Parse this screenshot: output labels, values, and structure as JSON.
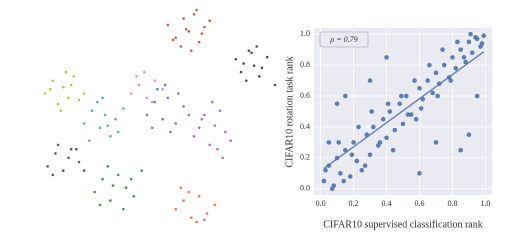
{
  "chart_data": [
    {
      "type": "scatter",
      "series": [
        {
          "color": "#b5462f",
          "x": [
            52,
            55,
            58,
            60,
            62,
            64,
            66,
            68,
            57,
            61,
            65,
            63,
            59,
            54
          ],
          "y": [
            92,
            86,
            95,
            89,
            97,
            84,
            91,
            94,
            82,
            80,
            88,
            99,
            90,
            85
          ]
        },
        {
          "color": "#333333",
          "x": [
            78,
            80,
            83,
            85,
            87,
            90,
            82,
            86,
            88,
            93,
            81,
            84
          ],
          "y": [
            76,
            70,
            80,
            73,
            68,
            77,
            66,
            82,
            72,
            64,
            74,
            79
          ]
        },
        {
          "color": "#b5b52a",
          "x": [
            5,
            8,
            10,
            12,
            14,
            16,
            18,
            11,
            7,
            15,
            20,
            13
          ],
          "y": [
            60,
            66,
            55,
            63,
            58,
            68,
            57,
            52,
            62,
            64,
            60,
            70
          ]
        },
        {
          "color": "#3aa0b0",
          "x": [
            20,
            23,
            26,
            28,
            30,
            32,
            35,
            25,
            29,
            33,
            22,
            27
          ],
          "y": [
            46,
            52,
            44,
            50,
            40,
            48,
            53,
            56,
            45,
            42,
            38,
            58
          ]
        },
        {
          "color": "#9b59b6",
          "x": [
            62,
            65,
            68,
            70,
            72,
            74,
            76,
            66,
            71,
            69,
            64,
            73
          ],
          "y": [
            40,
            48,
            36,
            45,
            52,
            42,
            38,
            50,
            34,
            56,
            44,
            30
          ]
        },
        {
          "color": "#4a6fb5",
          "x": [
            44,
            47,
            50,
            52,
            55,
            58,
            48,
            53,
            56,
            46,
            51,
            60
          ],
          "y": [
            50,
            56,
            48,
            58,
            46,
            54,
            62,
            42,
            60,
            44,
            64,
            50
          ]
        },
        {
          "color": "#2e7d32",
          "x": [
            24,
            27,
            30,
            33,
            36,
            39,
            42,
            29,
            35,
            38,
            31,
            26
          ],
          "y": [
            14,
            20,
            10,
            22,
            16,
            12,
            24,
            26,
            6,
            20,
            17,
            8
          ]
        },
        {
          "color": "#e0662e",
          "x": [
            55,
            58,
            61,
            64,
            67,
            70,
            60,
            63,
            57,
            66
          ],
          "y": [
            6,
            10,
            2,
            12,
            4,
            8,
            14,
            0,
            16,
            1
          ]
        },
        {
          "color": "#5a3a2a",
          "x": [
            6,
            9,
            12,
            15,
            18,
            10,
            14,
            8,
            17,
            20
          ],
          "y": [
            26,
            32,
            24,
            34,
            28,
            36,
            30,
            22,
            34,
            24
          ]
        },
        {
          "color": "#d77fb0",
          "x": [
            38,
            41,
            44,
            47,
            50,
            43,
            46,
            40
          ],
          "y": [
            60,
            64,
            58,
            66,
            62,
            70,
            56,
            68
          ]
        }
      ]
    },
    {
      "type": "scatter",
      "x_label": "CIFAR10 supervised classification rank",
      "y_label": "CIFAR10 rotation task rank",
      "annotation": "ρ = 0.79",
      "color": "#4c72b0",
      "background": "#eaeaf2",
      "grid": true,
      "trend_line": true,
      "xlim": [
        -0.04,
        1.04
      ],
      "ylim": [
        -0.04,
        1.04
      ],
      "xticks": [
        {
          "value": 0,
          "label": "0.0"
        },
        0.2,
        0.4,
        0.6,
        0.8,
        {
          "value": 1,
          "label": "1.0"
        }
      ],
      "yticks": [
        {
          "value": 0,
          "label": "0.0"
        },
        0.2,
        0.4,
        0.6,
        0.8,
        {
          "value": 1,
          "label": "1.0"
        }
      ],
      "x": [
        0.02,
        0.05,
        0.08,
        0.1,
        0.12,
        0.15,
        0.18,
        0.2,
        0.22,
        0.25,
        0.28,
        0.3,
        0.32,
        0.35,
        0.38,
        0.4,
        0.42,
        0.45,
        0.48,
        0.5,
        0.52,
        0.55,
        0.58,
        0.6,
        0.62,
        0.65,
        0.68,
        0.7,
        0.72,
        0.75,
        0.78,
        0.8,
        0.82,
        0.85,
        0.88,
        0.9,
        0.92,
        0.95,
        0.97,
        0.99,
        0.03,
        0.07,
        0.11,
        0.14,
        0.19,
        0.23,
        0.27,
        0.31,
        0.36,
        0.41,
        0.44,
        0.49,
        0.53,
        0.57,
        0.61,
        0.66,
        0.71,
        0.74,
        0.79,
        0.83,
        0.87,
        0.91,
        0.94,
        0.98,
        0.1,
        0.15,
        0.3,
        0.85,
        0.9,
        0.6,
        0.05,
        0.95,
        0.4,
        0.7
      ],
      "y": [
        0.05,
        0.15,
        0.02,
        0.2,
        0.1,
        0.25,
        0.08,
        0.3,
        0.18,
        0.12,
        0.35,
        0.22,
        0.4,
        0.28,
        0.45,
        0.33,
        0.5,
        0.38,
        0.55,
        0.42,
        0.6,
        0.48,
        0.45,
        0.65,
        0.58,
        0.7,
        0.62,
        0.75,
        0.68,
        0.8,
        0.72,
        0.85,
        0.78,
        0.9,
        0.82,
        0.95,
        0.88,
        0.97,
        0.92,
        0.99,
        0.12,
        0.0,
        0.3,
        0.05,
        0.22,
        0.4,
        0.15,
        0.5,
        0.3,
        0.55,
        0.25,
        0.6,
        0.48,
        0.7,
        0.52,
        0.8,
        0.6,
        0.9,
        0.7,
        0.95,
        0.85,
        1.0,
        0.98,
        0.94,
        0.55,
        0.6,
        0.7,
        0.25,
        0.35,
        0.1,
        0.3,
        0.6,
        0.85,
        0.3
      ]
    }
  ]
}
